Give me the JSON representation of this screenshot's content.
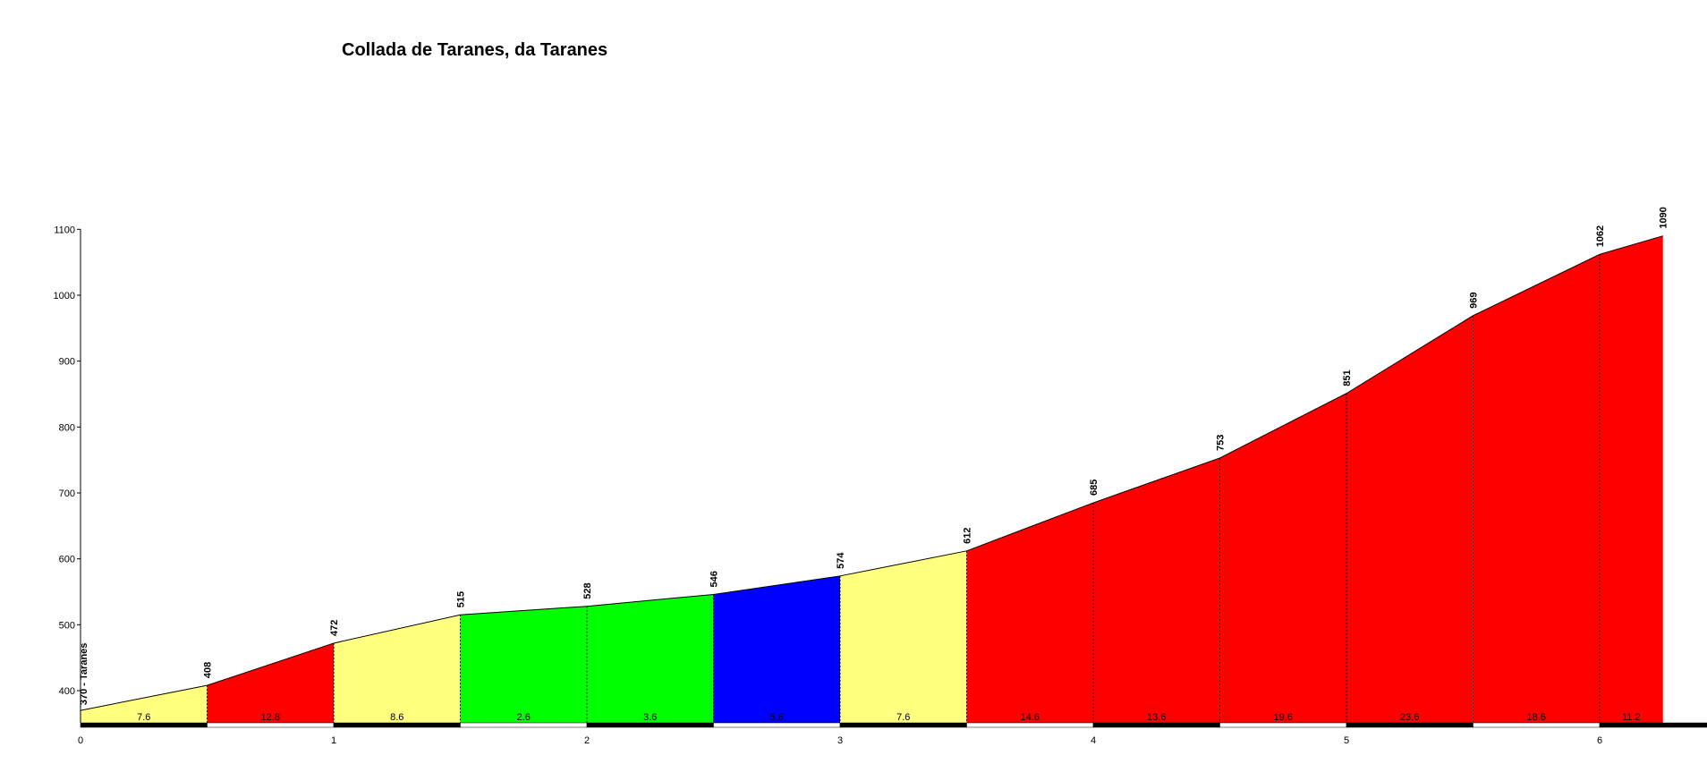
{
  "chart_data": {
    "type": "area",
    "title": "Collada de Taranes, da Taranes",
    "start_label": "370 - Taranes",
    "xlabel": "",
    "ylabel": "",
    "xlim": [
      0,
      6.75
    ],
    "ylim": [
      350,
      1100
    ],
    "x_ticks": [
      "0",
      "1",
      "2",
      "3",
      "4",
      "5",
      "6"
    ],
    "y_ticks": [
      "400",
      "500",
      "600",
      "700",
      "800",
      "900",
      "1000",
      "1100"
    ],
    "grid": false,
    "legend": "none",
    "points": [
      {
        "km": 0.0,
        "elevation": 370
      },
      {
        "km": 0.5,
        "elevation": 408
      },
      {
        "km": 1.0,
        "elevation": 472
      },
      {
        "km": 1.5,
        "elevation": 515
      },
      {
        "km": 2.0,
        "elevation": 528
      },
      {
        "km": 2.5,
        "elevation": 546
      },
      {
        "km": 3.0,
        "elevation": 574
      },
      {
        "km": 3.5,
        "elevation": 612
      },
      {
        "km": 4.0,
        "elevation": 685
      },
      {
        "km": 4.5,
        "elevation": 753
      },
      {
        "km": 5.0,
        "elevation": 851
      },
      {
        "km": 5.5,
        "elevation": 969
      },
      {
        "km": 6.0,
        "elevation": 1062
      },
      {
        "km": 6.25,
        "elevation": 1090
      }
    ],
    "elevation_labels": [
      "408",
      "472",
      "515",
      "528",
      "546",
      "574",
      "612",
      "685",
      "753",
      "851",
      "969",
      "1062",
      "1090"
    ],
    "segments": [
      {
        "grade": "7.6",
        "color": "#ffff80"
      },
      {
        "grade": "12.8",
        "color": "#ff0000"
      },
      {
        "grade": "8.6",
        "color": "#ffff80"
      },
      {
        "grade": "2.6",
        "color": "#00ff00"
      },
      {
        "grade": "3.6",
        "color": "#00ff00"
      },
      {
        "grade": "5.6",
        "color": "#0000ff"
      },
      {
        "grade": "7.6",
        "color": "#ffff80"
      },
      {
        "grade": "14.6",
        "color": "#ff0000"
      },
      {
        "grade": "13.6",
        "color": "#ff0000"
      },
      {
        "grade": "19.6",
        "color": "#ff0000"
      },
      {
        "grade": "23.6",
        "color": "#ff0000"
      },
      {
        "grade": "18.6",
        "color": "#ff0000"
      },
      {
        "grade": "11.2",
        "color": "#ff0000"
      }
    ]
  }
}
